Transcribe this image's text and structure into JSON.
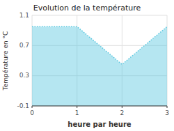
{
  "chart_data": {
    "type": "area",
    "title": "Evolution de la température",
    "x_label": "heure par heure",
    "y_label": "Température en °C",
    "x": [
      0,
      1,
      2,
      3
    ],
    "values": [
      0.95,
      0.95,
      0.45,
      0.95
    ],
    "xlim": [
      0,
      3
    ],
    "ylim": [
      -0.1,
      1.1
    ],
    "xticks": [
      0,
      1,
      2,
      3
    ],
    "yticks": [
      -0.1,
      0.3,
      0.7,
      1.1
    ],
    "color": "#5bc8e0",
    "line_style": "dotted",
    "grid": true
  }
}
